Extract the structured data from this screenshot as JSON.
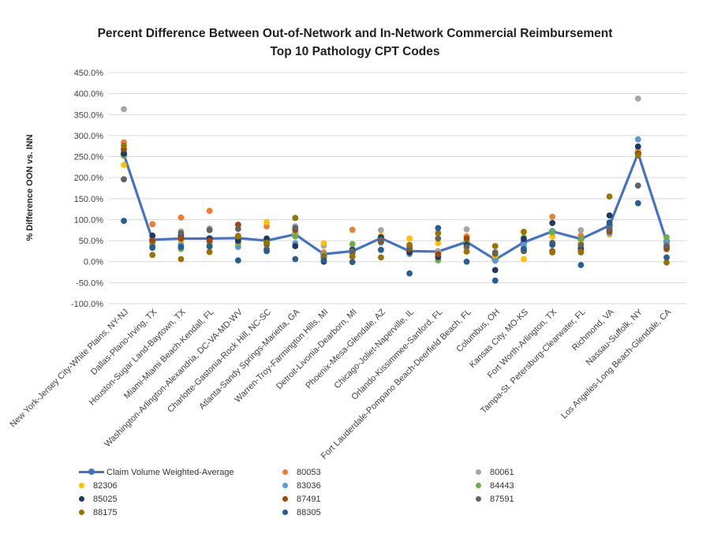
{
  "title": {
    "line1": "Percent Difference Between Out-of-Network and In-Network Commercial Reimbursement",
    "line2": "Top 10 Pathology CPT Codes"
  },
  "y_axis": {
    "label": "% Difference OON vs. INN",
    "min": -100,
    "max": 450,
    "step": 50,
    "tick_format": "one-decimal-percent"
  },
  "colors": {
    "grid": "#D9D9D9",
    "axis_text": "#404040",
    "title_text": "#1F1F1F",
    "accent_line": "#4472C4"
  },
  "legend": {
    "columns": [
      [
        {
          "label": "Claim Volume Weighted-Average",
          "marker": "line",
          "color": "#4472C4"
        },
        {
          "label": "82306",
          "marker": "dot",
          "color": "#FFC000"
        },
        {
          "label": "85025",
          "marker": "dot",
          "color": "#1F3864"
        },
        {
          "label": "88175",
          "marker": "dot",
          "color": "#997300"
        }
      ],
      [
        {
          "label": "80053",
          "marker": "dot",
          "color": "#ED7D31"
        },
        {
          "label": "83036",
          "marker": "dot",
          "color": "#5B9BD5"
        },
        {
          "label": "87491",
          "marker": "dot",
          "color": "#9E480E"
        },
        {
          "label": "88305",
          "marker": "dot",
          "color": "#255E91"
        }
      ],
      [
        {
          "label": "80061",
          "marker": "dot",
          "color": "#A5A5A5"
        },
        {
          "label": "84443",
          "marker": "dot",
          "color": "#70AD47"
        },
        {
          "label": "87591",
          "marker": "dot",
          "color": "#636363"
        }
      ]
    ]
  },
  "chart_data": {
    "type": "scatter",
    "title": "Percent Difference Between Out-of-Network and In-Network Commercial Reimbursement — Top 10 Pathology CPT Codes",
    "xlabel": "",
    "ylabel": "% Difference OON vs. INN",
    "ylim": [
      -100,
      450
    ],
    "grid": true,
    "legend_position": "bottom",
    "categories": [
      "New York-Jersey City-White Plains, NY-NJ",
      "Dallas-Plano-Irving, TX",
      "Houston-Sugar Land-Baytown, TX",
      "Miami-Miami Beach-Kendall, FL",
      "Washington-Arlington-Alexandria, DC-VA-MD-WV",
      "Charlotte-Gastonia-Rock Hill, NC-SC",
      "Atlanta-Sandy Springs-Marietta, GA",
      "Warren-Troy-Farmington Hills, MI",
      "Detroit-Livonia-Dearborn, MI",
      "Phoenix-Mesa-Glendale, AZ",
      "Chicago-Joliet-Naperville, IL",
      "Orlando-Kissimmee-Sanford, FL",
      "Fort Lauderdale-Pompano Beach-Deerfield Beach, FL",
      "Columbus, OH",
      "Kansas City, MO-KS",
      "Fort Worth-Arlington, TX",
      "Tampa-St. Petersburg-Clearwater, FL",
      "Richmond, VA",
      "Nassau-Suffolk, NY",
      "Los Angeles-Long Beach-Glendale, CA"
    ],
    "average_line": {
      "name": "Claim Volume Weighted-Average",
      "color": "#4472C4",
      "values": [
        255,
        52,
        55,
        55,
        56,
        50,
        65,
        18,
        25,
        56,
        25,
        24,
        47,
        5,
        46,
        72,
        54,
        86,
        258,
        48
      ]
    },
    "series": [
      {
        "name": "80053",
        "color": "#ED7D31",
        "values": [
          284,
          89,
          105,
          121,
          62,
          84,
          82,
          22,
          76,
          55,
          27,
          20,
          60,
          20,
          25,
          107,
          62,
          70,
          265,
          45
        ]
      },
      {
        "name": "80061",
        "color": "#A5A5A5",
        "values": [
          363,
          55,
          72,
          79,
          60,
          45,
          84,
          38,
          30,
          75,
          38,
          24,
          77,
          15,
          33,
          68,
          75,
          75,
          388,
          42
        ]
      },
      {
        "name": "82306",
        "color": "#FFC000",
        "values": [
          230,
          49,
          48,
          45,
          40,
          94,
          64,
          44,
          25,
          62,
          55,
          44,
          48,
          12,
          6,
          60,
          45,
          65,
          261,
          40
        ]
      },
      {
        "name": "83036",
        "color": "#5B9BD5",
        "values": [
          262,
          39,
          40,
          40,
          35,
          48,
          44,
          14,
          20,
          45,
          18,
          15,
          45,
          2,
          40,
          73,
          35,
          68,
          291,
          48
        ]
      },
      {
        "name": "84443",
        "color": "#70AD47",
        "values": [
          252,
          44,
          30,
          48,
          44,
          50,
          60,
          16,
          42,
          50,
          25,
          3,
          45,
          18,
          58,
          70,
          55,
          72,
          255,
          58
        ]
      },
      {
        "name": "85025",
        "color": "#1F3864",
        "values": [
          257,
          62,
          62,
          55,
          50,
          55,
          37,
          0,
          28,
          58,
          22,
          11,
          40,
          -20,
          54,
          92,
          30,
          110,
          274,
          35
        ]
      },
      {
        "name": "87491",
        "color": "#9E480E",
        "values": [
          268,
          50,
          55,
          50,
          88,
          41,
          75,
          12,
          22,
          48,
          30,
          18,
          55,
          20,
          25,
          25,
          25,
          72,
          258,
          30
        ]
      },
      {
        "name": "87591",
        "color": "#636363",
        "values": [
          196,
          35,
          68,
          75,
          78,
          30,
          80,
          10,
          25,
          52,
          35,
          55,
          35,
          22,
          27,
          45,
          40,
          78,
          181,
          38
        ]
      },
      {
        "name": "88175",
        "color": "#997300",
        "values": [
          276,
          16,
          6,
          23,
          60,
          45,
          104,
          8,
          12,
          10,
          40,
          68,
          24,
          37,
          71,
          22,
          22,
          155,
          253,
          -2
        ]
      },
      {
        "name": "88305",
        "color": "#255E91",
        "values": [
          97,
          33,
          35,
          36,
          3,
          25,
          6,
          3,
          -1,
          28,
          -28,
          80,
          0,
          -45,
          30,
          40,
          -8,
          93,
          139,
          10
        ]
      }
    ]
  }
}
